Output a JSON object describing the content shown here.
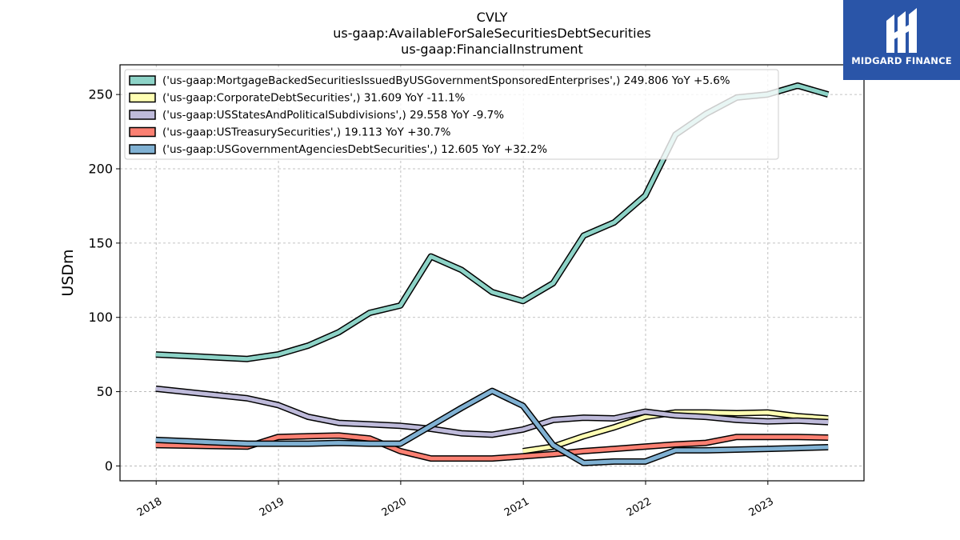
{
  "chart_data": {
    "type": "line",
    "title": [
      "CVLY",
      "us-gaap:AvailableForSaleSecuritiesDebtSecurities",
      "us-gaap:FinancialInstrument"
    ],
    "xlabel": "",
    "ylabel": "USDm",
    "xlim": [
      "2017-09-15",
      "2023-10-15"
    ],
    "ylim": [
      -10,
      270
    ],
    "xticks": [
      "2018",
      "2019",
      "2020",
      "2021",
      "2022",
      "2023"
    ],
    "yticks": [
      0,
      50,
      100,
      150,
      200,
      250
    ],
    "grid": true,
    "legend_position": "top-left",
    "series": [
      {
        "name": "('us-gaap:MortgageBackedSecuritiesIssuedByUSGovernmentSponsoredEnterprises',) 249.806 YoY +5.6%",
        "color": "#8dd3c7",
        "x": [
          "2017-12-31",
          "2018-09-30",
          "2018-12-31",
          "2019-03-31",
          "2019-06-30",
          "2019-09-30",
          "2019-12-31",
          "2020-03-31",
          "2020-06-30",
          "2020-09-30",
          "2020-12-31",
          "2021-03-31",
          "2021-06-30",
          "2021-09-30",
          "2021-12-31",
          "2022-03-31",
          "2022-06-30",
          "2022-09-30",
          "2022-12-31",
          "2023-03-31",
          "2023-06-30"
        ],
        "y": [
          75,
          72,
          75,
          81,
          90,
          103,
          108,
          141,
          132,
          117,
          111,
          123,
          155,
          164,
          182,
          223,
          237,
          248,
          250,
          256,
          250
        ]
      },
      {
        "name": "('us-gaap:CorporateDebtSecurities',) 31.609 YoY -11.1%",
        "color": "#ffffb3",
        "x": [
          "2020-12-31",
          "2021-03-31",
          "2021-06-30",
          "2021-09-30",
          "2021-12-31",
          "2022-03-31",
          "2022-06-30",
          "2022-09-30",
          "2022-12-31",
          "2023-03-31",
          "2023-06-30"
        ],
        "y": [
          10,
          13,
          20,
          26,
          33,
          36,
          36,
          35.5,
          36,
          33.5,
          32
        ]
      },
      {
        "name": "('us-gaap:USStatesAndPoliticalSubdivisions',) 29.558 YoY -9.7%",
        "color": "#bebada",
        "x": [
          "2017-12-31",
          "2018-09-30",
          "2018-12-31",
          "2019-03-31",
          "2019-06-30",
          "2019-09-30",
          "2019-12-31",
          "2020-03-31",
          "2020-06-30",
          "2020-09-30",
          "2020-12-31",
          "2021-03-31",
          "2021-06-30",
          "2021-09-30",
          "2021-12-31",
          "2022-03-31",
          "2022-06-30",
          "2022-09-30",
          "2022-12-31",
          "2023-03-31",
          "2023-06-30"
        ],
        "y": [
          52,
          45.5,
          41,
          33,
          29,
          28,
          27,
          25,
          22,
          21,
          24.5,
          31,
          32.5,
          32,
          36.5,
          34,
          33,
          31,
          30,
          30.5,
          29.5
        ]
      },
      {
        "name": "('us-gaap:USTreasurySecurities',) 19.113 YoY +30.7%",
        "color": "#fb8072",
        "x": [
          "2017-12-31",
          "2018-09-30",
          "2018-12-31",
          "2019-03-31",
          "2019-06-30",
          "2019-09-30",
          "2019-12-31",
          "2020-03-31",
          "2020-06-30",
          "2020-09-30",
          "2020-12-31",
          "2021-03-31",
          "2021-06-30",
          "2021-09-30",
          "2021-12-31",
          "2022-03-31",
          "2022-06-30",
          "2022-09-30",
          "2022-12-31",
          "2023-03-31",
          "2023-06-30"
        ],
        "y": [
          14,
          13,
          19.5,
          20,
          20.5,
          18.5,
          10,
          5,
          5,
          5,
          6.5,
          8,
          10,
          11.5,
          13,
          14.5,
          15.5,
          19.5,
          19.5,
          19.5,
          19.1
        ]
      },
      {
        "name": "('us-gaap:USGovernmentAgenciesDebtSecurities',) 12.605 YoY +32.2%",
        "color": "#80b1d3",
        "x": [
          "2017-12-31",
          "2018-09-30",
          "2018-12-31",
          "2019-03-31",
          "2019-06-30",
          "2019-09-30",
          "2019-12-31",
          "2020-03-31",
          "2020-06-30",
          "2020-09-30",
          "2020-12-31",
          "2021-03-31",
          "2021-06-30",
          "2021-09-30",
          "2021-12-31",
          "2022-03-31",
          "2022-06-30",
          "2022-09-30",
          "2022-12-31",
          "2023-03-31",
          "2023-06-30"
        ],
        "y": [
          17.5,
          15,
          15,
          15,
          15.5,
          15,
          15,
          27,
          39,
          50.5,
          40.5,
          14,
          2,
          3,
          3,
          10.5,
          10.5,
          11,
          11.5,
          12,
          12.6
        ]
      }
    ]
  },
  "branding": {
    "logo_name": "MIDGARD FINANCE",
    "logo_color": "#2a55a8"
  }
}
